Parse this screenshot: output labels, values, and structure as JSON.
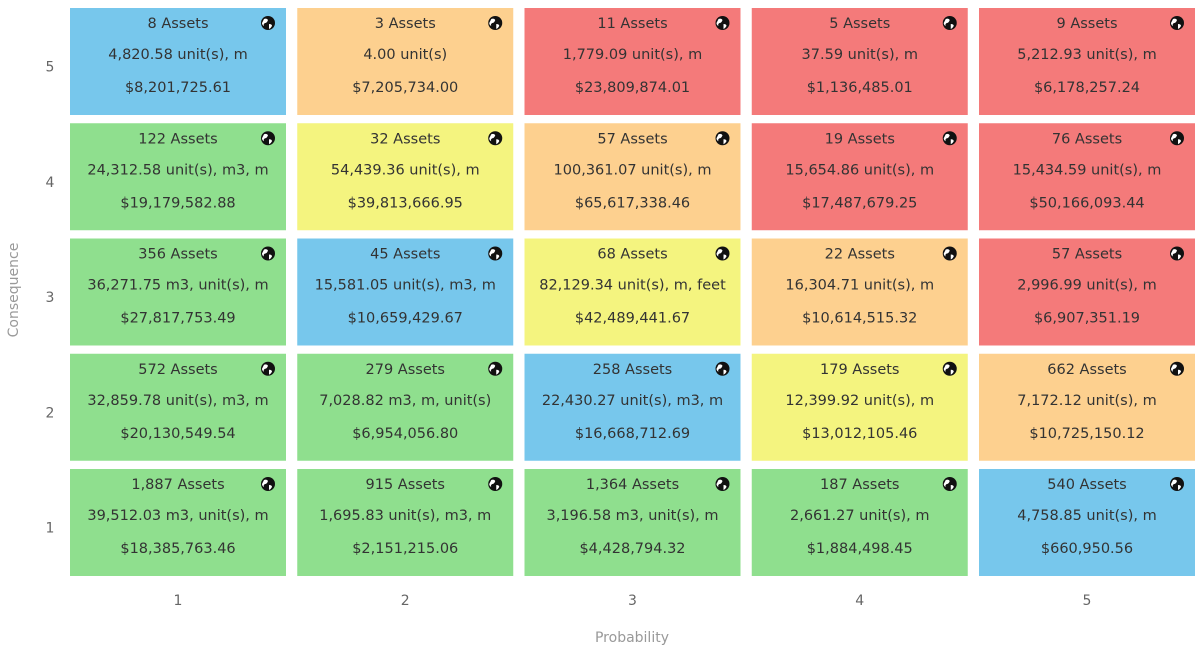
{
  "y_axis": {
    "title": "Consequence",
    "labels": [
      "5",
      "4",
      "3",
      "2",
      "1"
    ]
  },
  "x_axis": {
    "title": "Probability",
    "labels": [
      "1",
      "2",
      "3",
      "4",
      "5"
    ]
  },
  "rows": [
    [
      {
        "assets": "8 Assets",
        "quantity": "4,820.58 unit(s), m",
        "cost": "$8,201,725.61",
        "color": "#77c7ec"
      },
      {
        "assets": "3 Assets",
        "quantity": "4.00 unit(s)",
        "cost": "$7,205,734.00",
        "color": "#fdd08f"
      },
      {
        "assets": "11 Assets",
        "quantity": "1,779.09 unit(s), m",
        "cost": "$23,809,874.01",
        "color": "#f47a7a"
      },
      {
        "assets": "5 Assets",
        "quantity": "37.59 unit(s), m",
        "cost": "$1,136,485.01",
        "color": "#f47a7a"
      },
      {
        "assets": "9 Assets",
        "quantity": "5,212.93 unit(s), m",
        "cost": "$6,178,257.24",
        "color": "#f47a7a"
      }
    ],
    [
      {
        "assets": "122 Assets",
        "quantity": "24,312.58 unit(s), m3, m",
        "cost": "$19,179,582.88",
        "color": "#8fdf8e"
      },
      {
        "assets": "32 Assets",
        "quantity": "54,439.36 unit(s), m",
        "cost": "$39,813,666.95",
        "color": "#f4f47f"
      },
      {
        "assets": "57 Assets",
        "quantity": "100,361.07 unit(s), m",
        "cost": "$65,617,338.46",
        "color": "#fdd08f"
      },
      {
        "assets": "19 Assets",
        "quantity": "15,654.86 unit(s), m",
        "cost": "$17,487,679.25",
        "color": "#f47a7a"
      },
      {
        "assets": "76 Assets",
        "quantity": "15,434.59 unit(s), m",
        "cost": "$50,166,093.44",
        "color": "#f47a7a"
      }
    ],
    [
      {
        "assets": "356 Assets",
        "quantity": "36,271.75 m3, unit(s), m",
        "cost": "$27,817,753.49",
        "color": "#8fdf8e"
      },
      {
        "assets": "45 Assets",
        "quantity": "15,581.05 unit(s), m3, m",
        "cost": "$10,659,429.67",
        "color": "#77c7ec"
      },
      {
        "assets": "68 Assets",
        "quantity": "82,129.34 unit(s), m, feet",
        "cost": "$42,489,441.67",
        "color": "#f4f47f"
      },
      {
        "assets": "22 Assets",
        "quantity": "16,304.71 unit(s), m",
        "cost": "$10,614,515.32",
        "color": "#fdd08f"
      },
      {
        "assets": "57 Assets",
        "quantity": "2,996.99 unit(s), m",
        "cost": "$6,907,351.19",
        "color": "#f47a7a"
      }
    ],
    [
      {
        "assets": "572 Assets",
        "quantity": "32,859.78 unit(s), m3, m",
        "cost": "$20,130,549.54",
        "color": "#8fdf8e"
      },
      {
        "assets": "279 Assets",
        "quantity": "7,028.82 m3, m, unit(s)",
        "cost": "$6,954,056.80",
        "color": "#8fdf8e"
      },
      {
        "assets": "258 Assets",
        "quantity": "22,430.27 unit(s), m3, m",
        "cost": "$16,668,712.69",
        "color": "#77c7ec"
      },
      {
        "assets": "179 Assets",
        "quantity": "12,399.92 unit(s), m",
        "cost": "$13,012,105.46",
        "color": "#f4f47f"
      },
      {
        "assets": "662 Assets",
        "quantity": "7,172.12 unit(s), m",
        "cost": "$10,725,150.12",
        "color": "#fdd08f"
      }
    ],
    [
      {
        "assets": "1,887 Assets",
        "quantity": "39,512.03 m3, unit(s), m",
        "cost": "$18,385,763.46",
        "color": "#8fdf8e"
      },
      {
        "assets": "915 Assets",
        "quantity": "1,695.83 unit(s), m3, m",
        "cost": "$2,151,215.06",
        "color": "#8fdf8e"
      },
      {
        "assets": "1,364 Assets",
        "quantity": "3,196.58 m3, unit(s), m",
        "cost": "$4,428,794.32",
        "color": "#8fdf8e"
      },
      {
        "assets": "187 Assets",
        "quantity": "2,661.27 unit(s), m",
        "cost": "$1,884,498.45",
        "color": "#8fdf8e"
      },
      {
        "assets": "540 Assets",
        "quantity": "4,758.85 unit(s), m",
        "cost": "$660,950.56",
        "color": "#77c7ec"
      }
    ]
  ]
}
